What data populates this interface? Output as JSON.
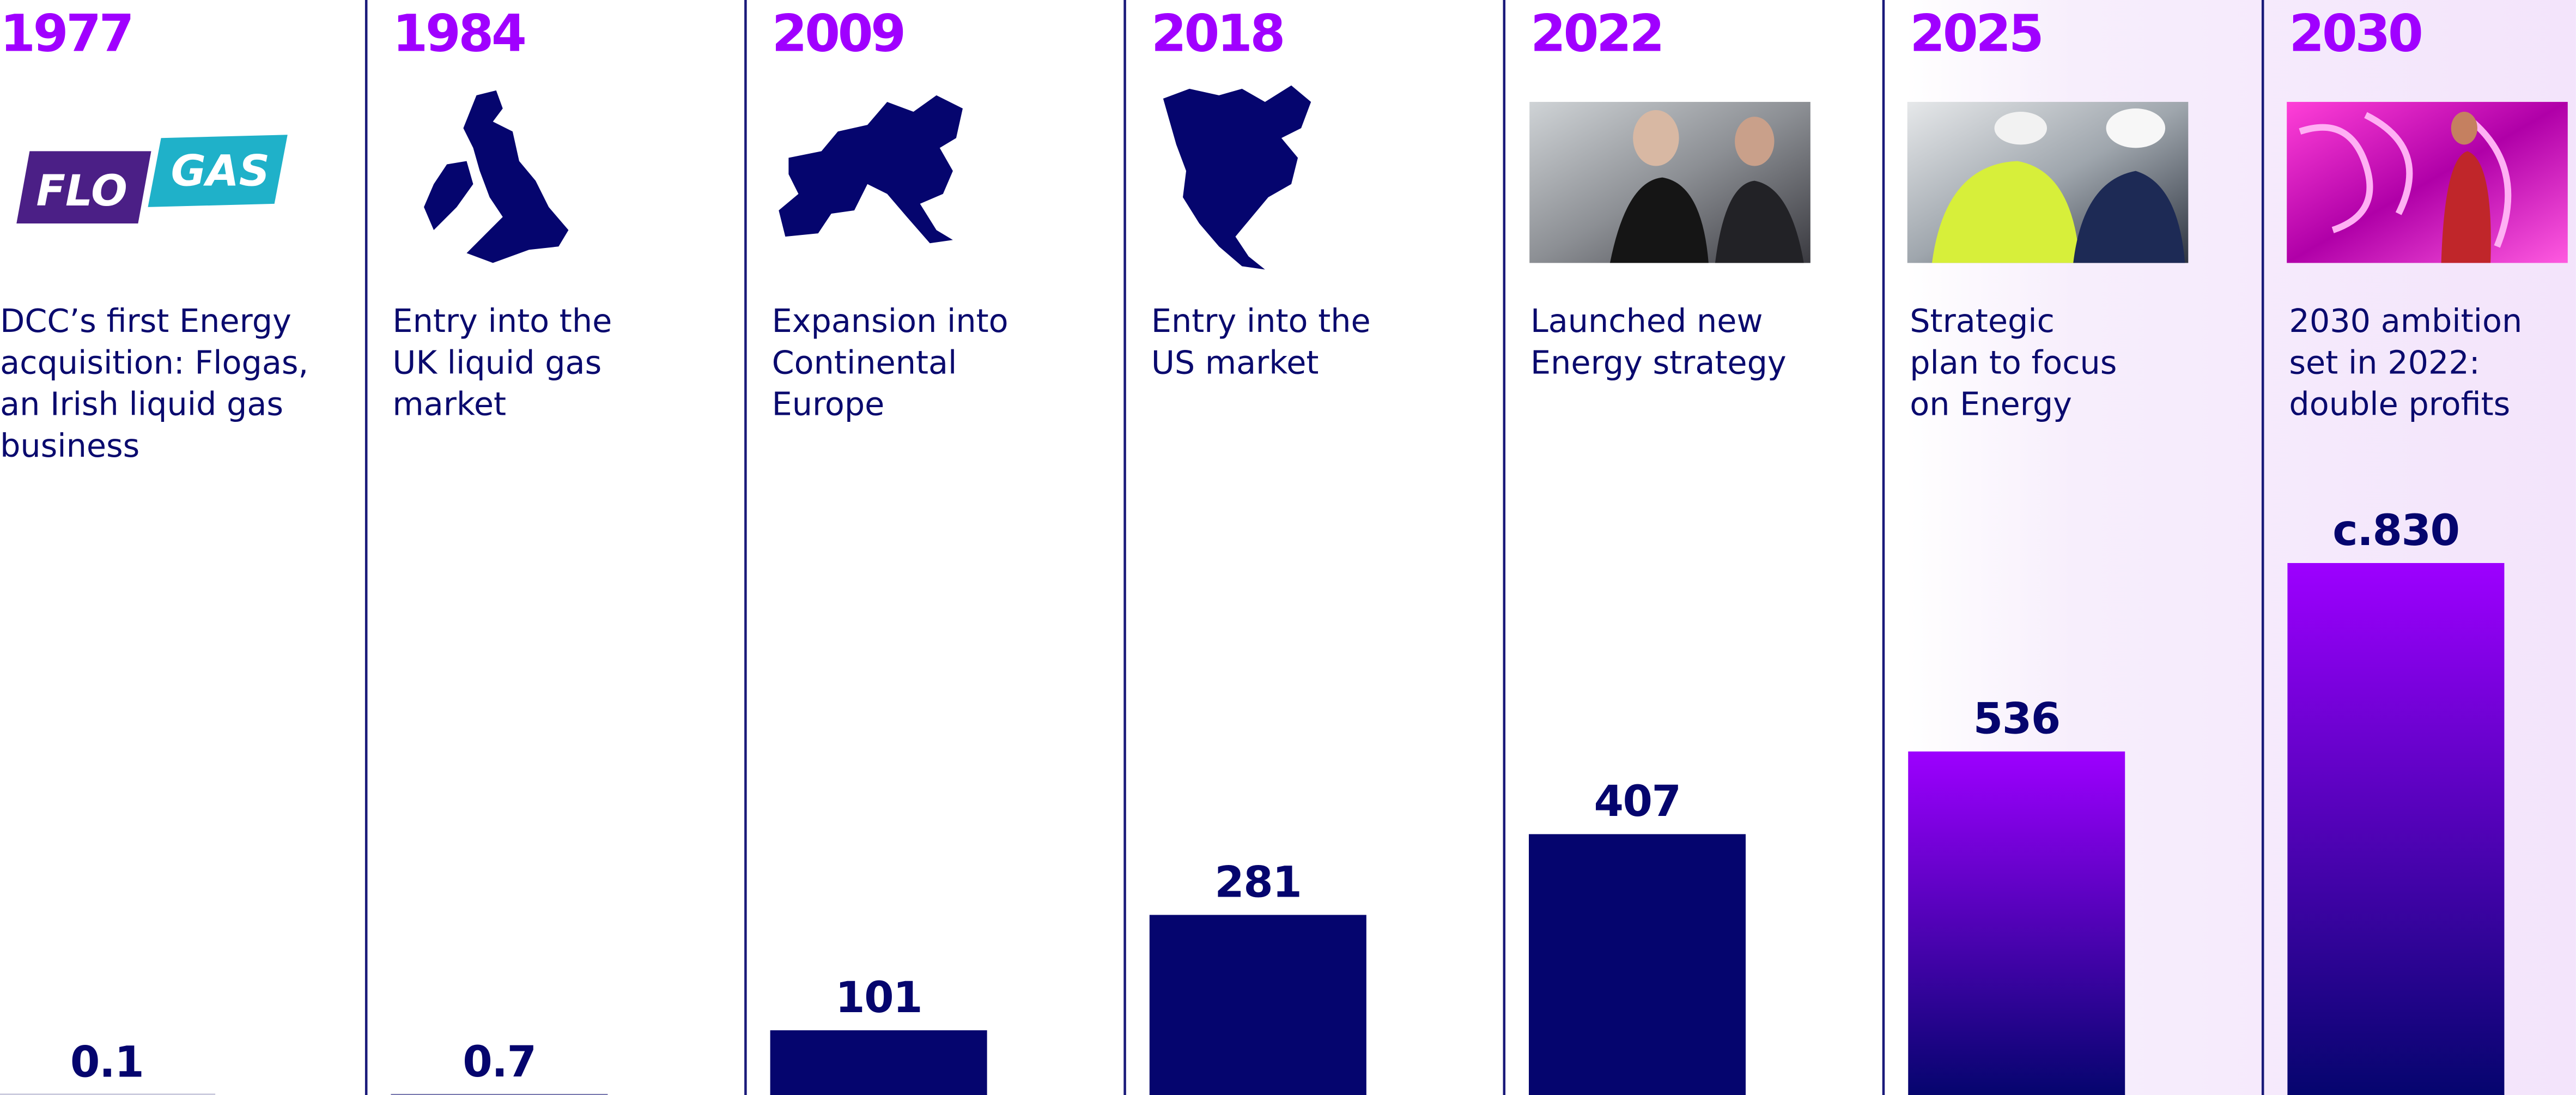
{
  "chart_data": {
    "type": "bar",
    "categories": [
      "1977",
      "1984",
      "2009",
      "2018",
      "2022",
      "2025",
      "2030"
    ],
    "descriptions": [
      [
        "DCC’s first Energy",
        "acquisition: Flogas,",
        "an Irish liquid gas",
        "business"
      ],
      [
        "Entry into the",
        "UK liquid gas",
        "market"
      ],
      [
        "Expansion into",
        "Continental",
        "Europe"
      ],
      [
        "Entry into the",
        "US market"
      ],
      [
        "Launched new",
        "Energy strategy"
      ],
      [
        "Strategic",
        "plan to focus",
        "on Energy"
      ],
      [
        "2030 ambition",
        "set in 2022:",
        "double profits"
      ]
    ],
    "values": [
      0.1,
      0.7,
      101,
      281,
      407,
      536,
      830
    ],
    "value_labels": [
      "0.1",
      "0.7",
      "101",
      "281",
      "407",
      "536",
      "c.830"
    ],
    "colors": [
      "#05056e",
      "#05056e",
      "#05056e",
      "#05056e",
      "#05056e",
      "#9d00ff",
      "#9d00ff"
    ],
    "logo": [
      "FLO",
      "GAS"
    ]
  }
}
